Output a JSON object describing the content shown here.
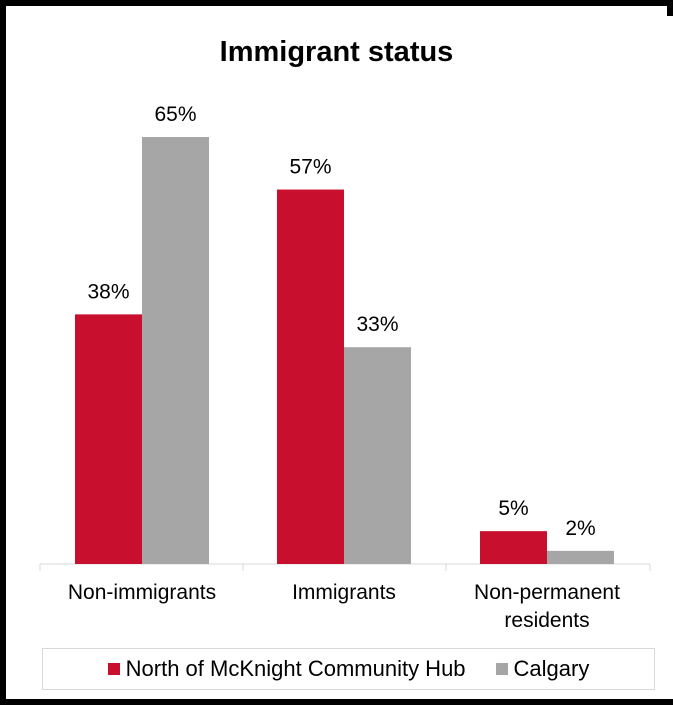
{
  "chart_data": {
    "type": "bar",
    "title": "Immigrant status",
    "categories": [
      "Non-immigrants",
      "Immigrants",
      "Non-permanent residents"
    ],
    "series": [
      {
        "name": "North of McKnight Community Hub",
        "values": [
          38,
          57,
          5
        ],
        "labels": [
          "38%",
          "57%",
          "5%"
        ],
        "color": "#c8102e"
      },
      {
        "name": "Calgary",
        "values": [
          65,
          33,
          2
        ],
        "labels": [
          "65%",
          "33%",
          "2%"
        ],
        "color": "#a6a6a6"
      }
    ],
    "ylim": [
      0,
      70
    ],
    "grid": false,
    "legend_position": "bottom"
  }
}
